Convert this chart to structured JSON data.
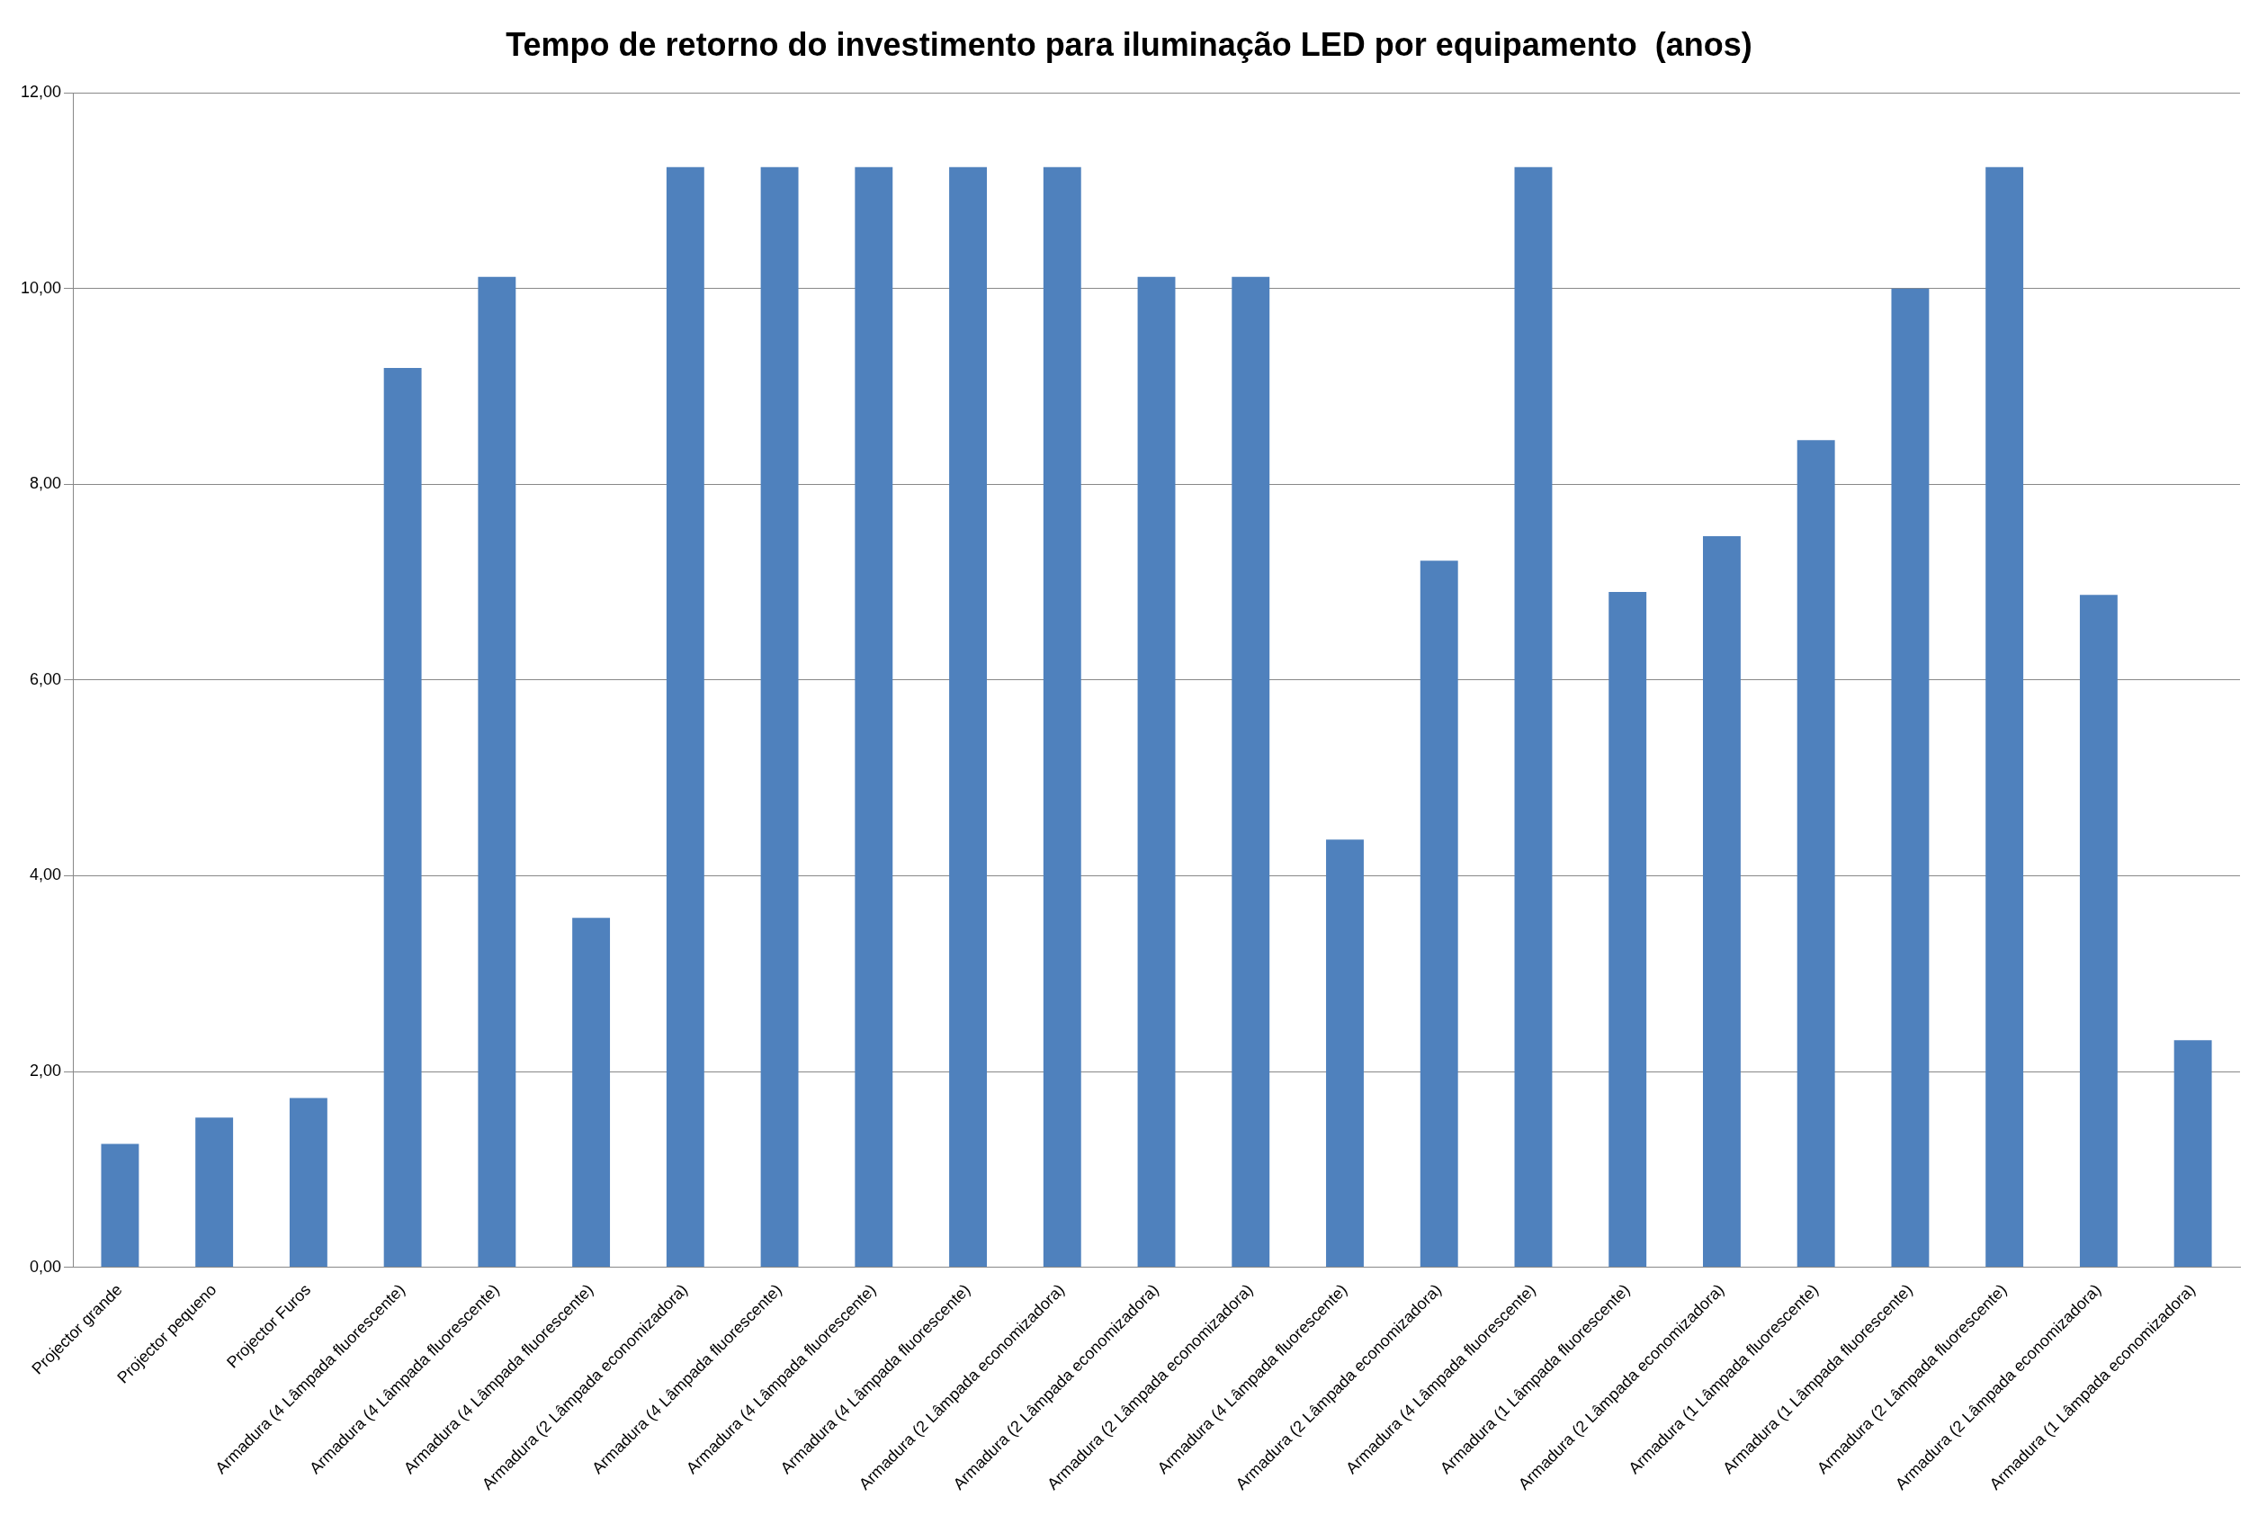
{
  "chart_data": {
    "type": "bar",
    "title": "Tempo de retorno do investimento para iluminação LED por equipamento  (anos)",
    "categories": [
      "Projector grande",
      "Projector pequeno",
      "Projector Furos",
      "Armadura (4 Lâmpada fluorescente)",
      "Armadura (4 Lâmpada fluorescente)",
      "Armadura (4 Lâmpada fluorescente)",
      "Armadura (2 Lâmpada economizadora)",
      "Armadura (4 Lâmpada fluorescente)",
      "Armadura (4 Lâmpada fluorescente)",
      "Armadura (4 Lâmpada fluorescente)",
      "Armadura (2 Lâmpada economizadora)",
      "Armadura (2 Lâmpada economizadora)",
      "Armadura (2 Lâmpada economizadora)",
      "Armadura (4 Lâmpada fluorescente)",
      "Armadura (2 Lâmpada economizadora)",
      "Armadura (4 Lâmpada fluorescente)",
      "Armadura (1 Lâmpada fluorescente)",
      "Armadura (2 Lâmpada economizadora)",
      "Armadura (1 Lâmpada fluorescente)",
      "Armadura (1 Lâmpada fluorescente)",
      "Armadura (2 Lâmpada fluorescente)",
      "Armadura (2 Lâmpada economizadora)",
      "Armadura (1 Lâmpada economizadora)"
    ],
    "values": [
      1.26,
      1.53,
      1.73,
      9.19,
      10.12,
      3.57,
      11.24,
      11.24,
      11.24,
      11.24,
      11.24,
      10.12,
      10.12,
      4.37,
      7.22,
      11.24,
      6.9,
      7.47,
      8.45,
      10.0,
      11.24,
      6.87,
      2.32
    ],
    "color": "#4f81bd",
    "ylim": [
      0,
      12
    ],
    "yticks": [
      {
        "value": 0,
        "label": "0,00"
      },
      {
        "value": 2,
        "label": "2,00"
      },
      {
        "value": 4,
        "label": "4,00"
      },
      {
        "value": 6,
        "label": "6,00"
      },
      {
        "value": 8,
        "label": "8,00"
      },
      {
        "value": 10,
        "label": "10,00"
      },
      {
        "value": 12,
        "label": "12,00"
      }
    ],
    "grid": "y",
    "legend": false
  }
}
